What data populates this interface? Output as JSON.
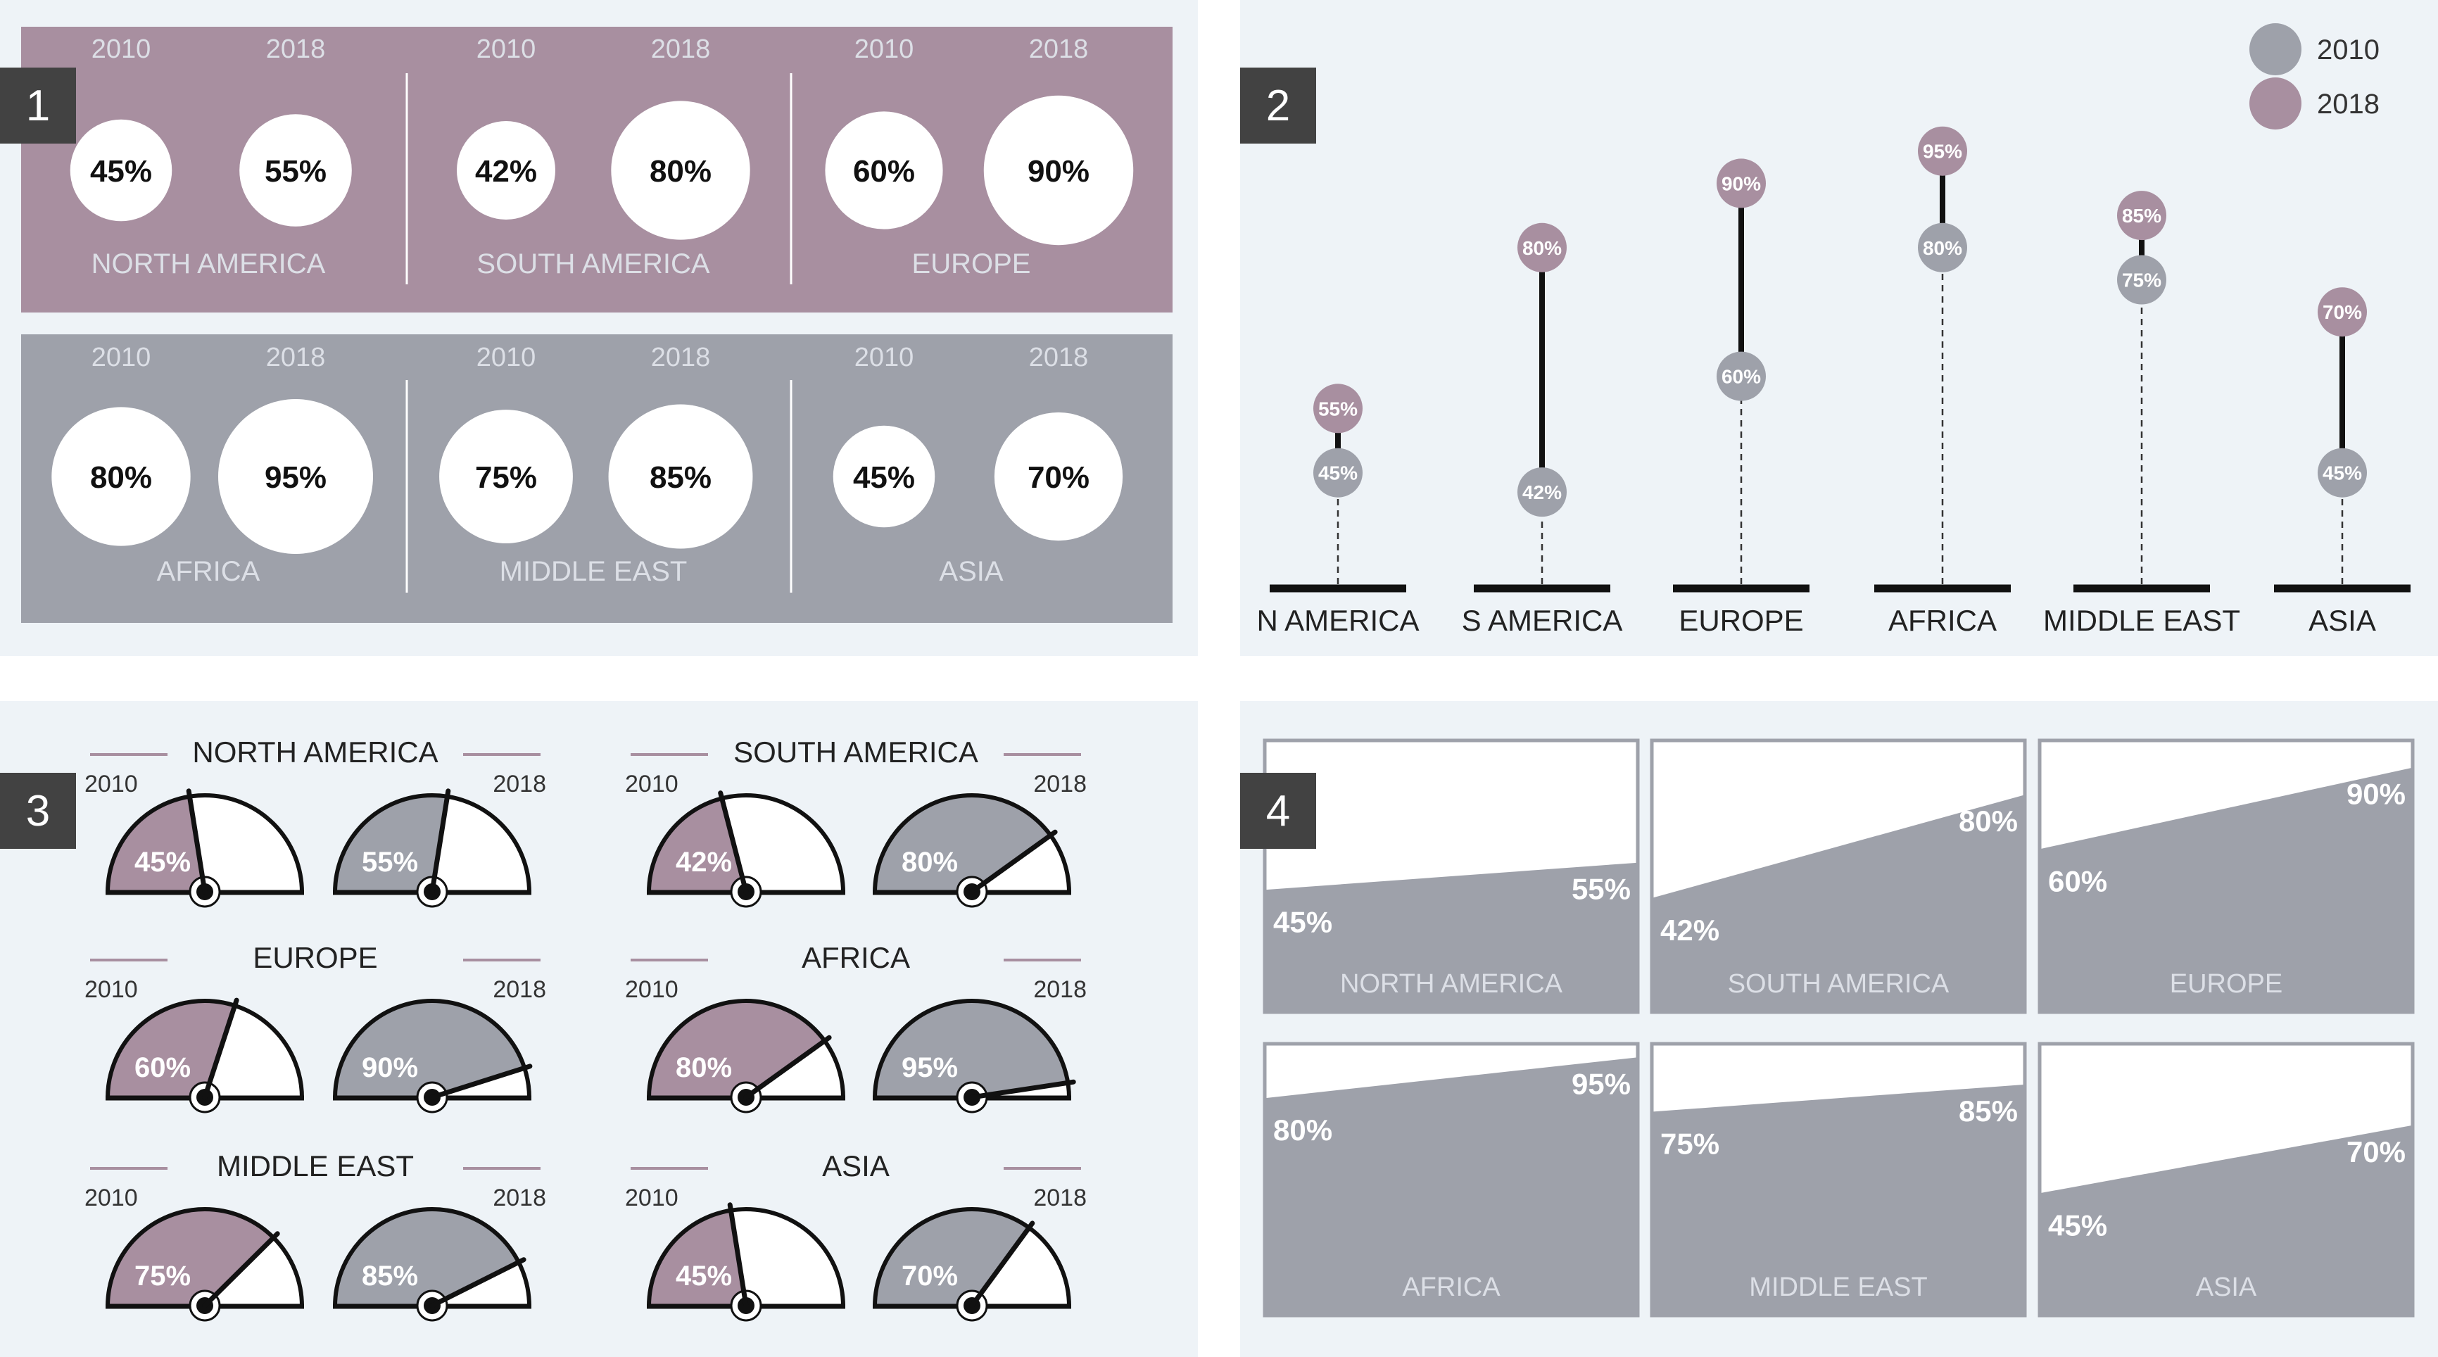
{
  "panel_numbers": [
    "1",
    "2",
    "3",
    "4"
  ],
  "chart_data": [
    {
      "type": "bubble-comparison",
      "panel": "1",
      "categories": [
        "NORTH AMERICA",
        "SOUTH AMERICA",
        "EUROPE",
        "AFRICA",
        "MIDDLE EAST",
        "ASIA"
      ],
      "series": [
        {
          "name": "2010",
          "values": [
            45,
            42,
            60,
            80,
            75,
            45
          ]
        },
        {
          "name": "2018",
          "values": [
            55,
            80,
            90,
            95,
            85,
            70
          ]
        }
      ],
      "year_labels": [
        "2010",
        "2018"
      ],
      "value_labels_2010": [
        "45%",
        "42%",
        "60%",
        "80%",
        "75%",
        "45%"
      ],
      "value_labels_2018": [
        "55%",
        "80%",
        "90%",
        "95%",
        "85%",
        "70%"
      ],
      "unit": "%"
    },
    {
      "type": "lollipop",
      "panel": "2",
      "categories": [
        "N AMERICA",
        "S AMERICA",
        "EUROPE",
        "AFRICA",
        "MIDDLE EAST",
        "ASIA"
      ],
      "series": [
        {
          "name": "2010",
          "values": [
            45,
            42,
            60,
            80,
            75,
            45
          ]
        },
        {
          "name": "2018",
          "values": [
            55,
            80,
            90,
            95,
            85,
            70
          ]
        }
      ],
      "value_labels_2010": [
        "45%",
        "42%",
        "60%",
        "80%",
        "75%",
        "45%"
      ],
      "value_labels_2018": [
        "55%",
        "80%",
        "90%",
        "95%",
        "85%",
        "70%"
      ],
      "legend": [
        {
          "label": "2010",
          "color": "#9ea1aa"
        },
        {
          "label": "2018",
          "color": "#a88fa0"
        }
      ],
      "legend_position": "top-right",
      "unit": "%"
    },
    {
      "type": "gauge",
      "panel": "3",
      "categories": [
        "NORTH AMERICA",
        "SOUTH AMERICA",
        "EUROPE",
        "AFRICA",
        "MIDDLE EAST",
        "ASIA"
      ],
      "series": [
        {
          "name": "2010",
          "values": [
            45,
            42,
            60,
            80,
            75,
            45
          ]
        },
        {
          "name": "2018",
          "values": [
            55,
            80,
            90,
            95,
            85,
            70
          ]
        }
      ],
      "year_labels": [
        "2010",
        "2018"
      ],
      "value_labels_2010": [
        "45%",
        "42%",
        "60%",
        "80%",
        "75%",
        "45%"
      ],
      "value_labels_2018": [
        "55%",
        "80%",
        "90%",
        "95%",
        "85%",
        "70%"
      ],
      "unit": "%"
    },
    {
      "type": "area",
      "panel": "4",
      "categories": [
        "NORTH AMERICA",
        "SOUTH AMERICA",
        "EUROPE",
        "AFRICA",
        "MIDDLE EAST",
        "ASIA"
      ],
      "series": [
        {
          "name": "2010",
          "values": [
            45,
            42,
            60,
            80,
            75,
            45
          ]
        },
        {
          "name": "2018",
          "values": [
            55,
            80,
            90,
            95,
            85,
            70
          ]
        }
      ],
      "value_labels_2010": [
        "45%",
        "42%",
        "60%",
        "80%",
        "75%",
        "45%"
      ],
      "value_labels_2018": [
        "55%",
        "80%",
        "90%",
        "95%",
        "85%",
        "70%"
      ],
      "ylim": [
        0,
        100
      ],
      "unit": "%"
    }
  ],
  "colors": {
    "mauve": "#a88fa0",
    "gray": "#9ea1aa",
    "panel_bg": "#eef3f7",
    "dark": "#111111",
    "light_text": "#dcdfe6"
  }
}
